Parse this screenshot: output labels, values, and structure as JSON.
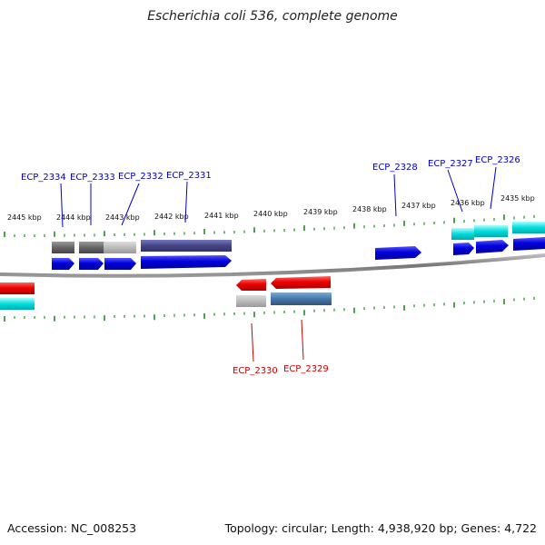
{
  "title": "Escherichia coli 536, complete genome",
  "footer": {
    "accession": "Accession: NC_008253",
    "topology": "Topology: circular; Length: 4,938,920 bp; Genes: 4,722"
  },
  "colors": {
    "forward_cds": "#0000dd",
    "reverse_cds": "#ee0000",
    "cyan": "#00dddd",
    "backbone": "#888888",
    "tick": "#228b22",
    "forward_label": "#0000cc",
    "reverse_label": "#cc0000"
  },
  "scale": {
    "labels": [
      "2445 kbp",
      "2444 kbp",
      "2443 kbp",
      "2442 kbp",
      "2441 kbp",
      "2440 kbp",
      "2439 kbp",
      "2438 kbp",
      "2437 kbp",
      "2436 kbp",
      "2435 kbp"
    ]
  },
  "gene_labels": {
    "forward": [
      "ECP_2334",
      "ECP_2333",
      "ECP_2332",
      "ECP_2331",
      "ECP_2328",
      "ECP_2327",
      "ECP_2326"
    ],
    "reverse": [
      "ECP_2330",
      "ECP_2329"
    ]
  }
}
